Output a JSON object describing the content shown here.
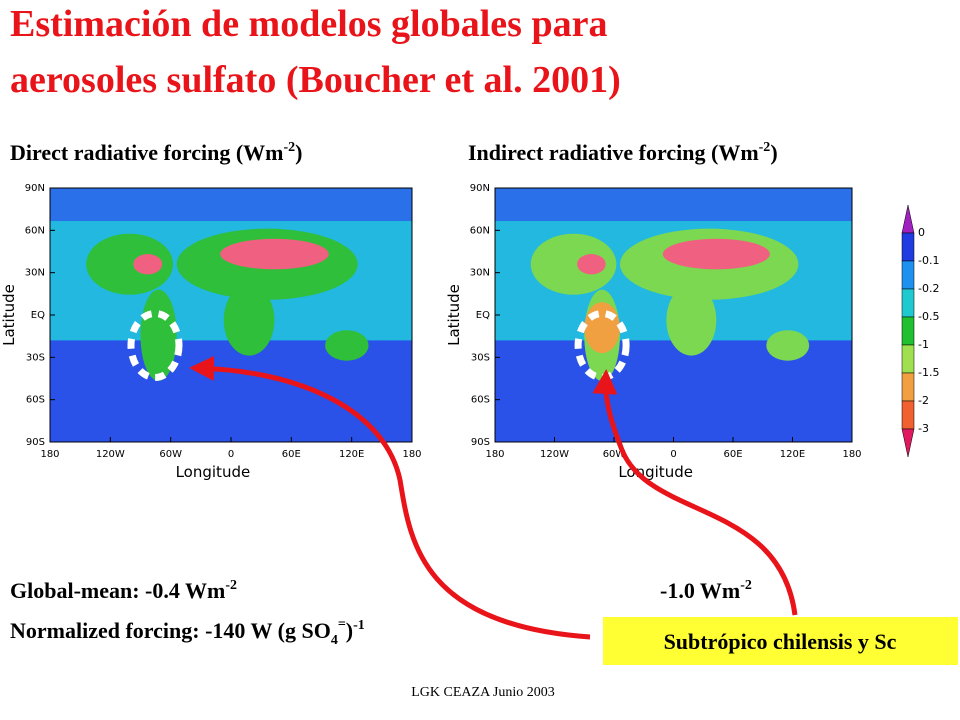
{
  "slide": {
    "title_lines": [
      "Estimación de modelos globales para",
      "aerosoles sulfato (Boucher et al. 2001)"
    ],
    "maps": [
      {
        "heading": {
          "text": "Direct radiative forcing (Wm",
          "sup": "-2",
          "end": ")"
        },
        "ylabel": "Latitude",
        "xlabel": "Longitude"
      },
      {
        "heading": {
          "text": "Indirect radiative forcing (Wm",
          "sup": "-2",
          "end": ")"
        },
        "ylabel": "Latitude",
        "xlabel": "Longitude"
      }
    ],
    "lat_ticks": [
      "90N",
      "60N",
      "30N",
      "EQ",
      "30S",
      "60S",
      "90S"
    ],
    "lon_ticks": [
      "180",
      "120W",
      "60W",
      "0",
      "60E",
      "120E",
      "180"
    ],
    "colorbar": {
      "labels": [
        "0",
        "-0.1",
        "-0.2",
        "-0.5",
        "-1",
        "-1.5",
        "-2",
        "-3"
      ],
      "colors": [
        "#a020c0",
        "#1e3ce0",
        "#1e90f0",
        "#20c8d0",
        "#20c030",
        "#a0e050",
        "#f0a040",
        "#f06030",
        "#e01860"
      ]
    },
    "global_mean": {
      "text": "Global-mean: -0.4 Wm",
      "sup": "-2",
      "right": "-1.0 Wm",
      "right_sup": "-2"
    },
    "normalized": {
      "text": "Normalized forcing: -140 W (g SO",
      "sub": "4",
      "sup": "=",
      "mid": ")",
      "sup2": "-1"
    },
    "box": "Subtrópico chilensis y Sc",
    "footer": "LGK CEAZA Junio 2003"
  }
}
